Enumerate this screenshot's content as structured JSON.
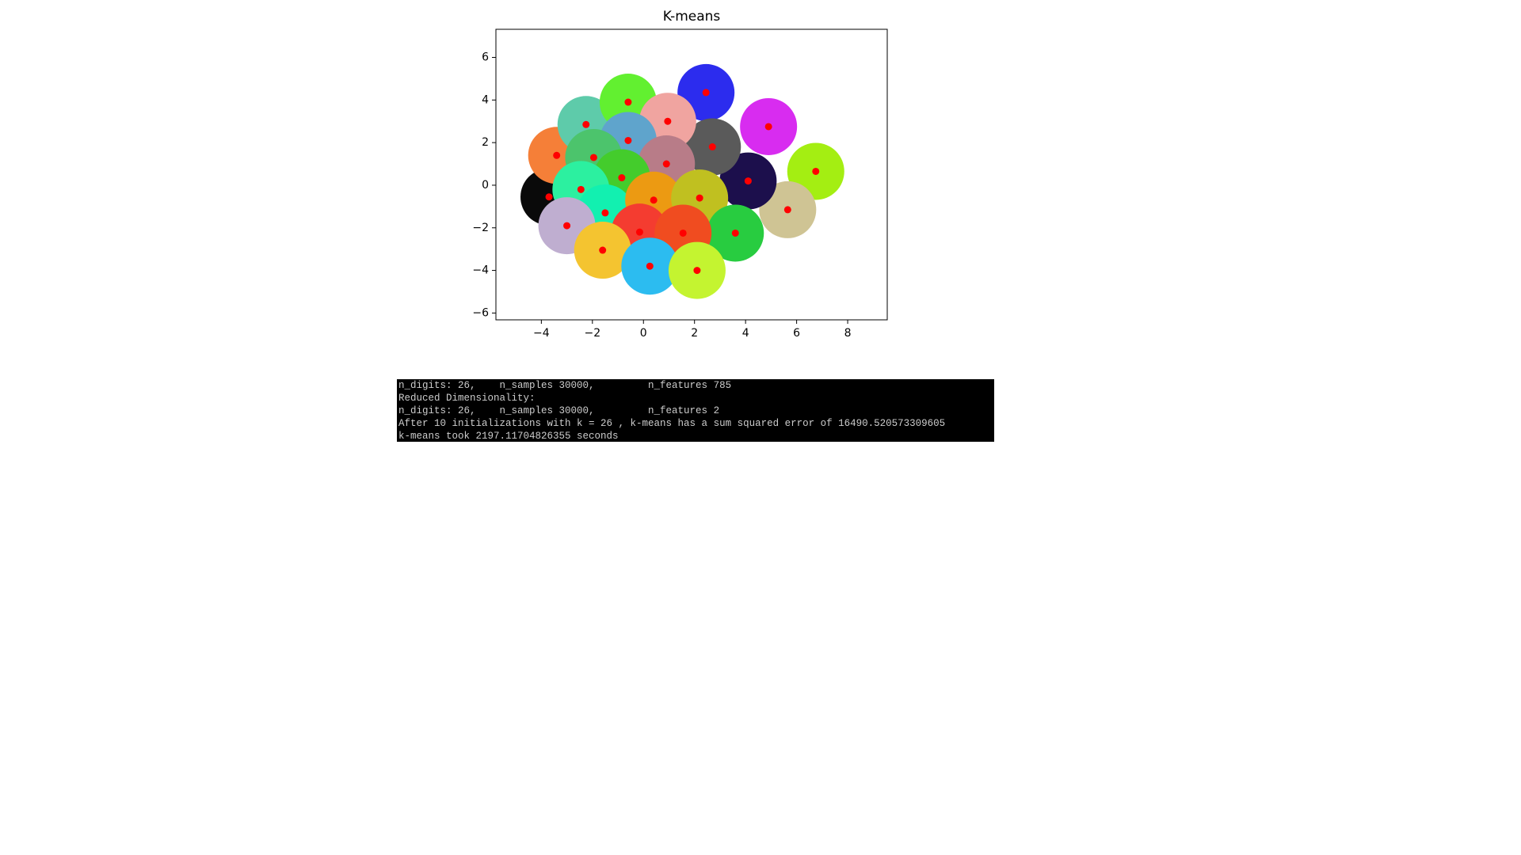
{
  "chart_data": {
    "type": "scatter",
    "title": "K-means",
    "xlim": [
      -5.78,
      9.55
    ],
    "ylim": [
      -6.32,
      7.32
    ],
    "xticks": [
      {
        "value": -4,
        "label": "−4"
      },
      {
        "value": -2,
        "label": "−2"
      },
      0,
      2,
      4,
      6,
      8
    ],
    "yticks": [
      {
        "value": -6,
        "label": "−6"
      },
      {
        "value": -4,
        "label": "−4"
      },
      {
        "value": -2,
        "label": "−2"
      },
      0,
      2,
      4,
      6
    ],
    "centroid_color": "#ff0000",
    "series": [
      {
        "color": "#0a0a0a",
        "x": [
          -3.7
        ],
        "y": [
          -0.55
        ]
      },
      {
        "color": "#f57f38",
        "x": [
          -3.4
        ],
        "y": [
          1.4
        ]
      },
      {
        "color": "#5ecbaa",
        "x": [
          -2.25
        ],
        "y": [
          2.85
        ]
      },
      {
        "color": "#62f030",
        "x": [
          -0.6
        ],
        "y": [
          3.9
        ]
      },
      {
        "color": "#2c2cee",
        "x": [
          2.45
        ],
        "y": [
          4.35
        ]
      },
      {
        "color": "#d82cf0",
        "x": [
          4.9
        ],
        "y": [
          2.75
        ]
      },
      {
        "color": "#a4ee12",
        "x": [
          6.75
        ],
        "y": [
          0.65
        ]
      },
      {
        "color": "#cfc494",
        "x": [
          5.65
        ],
        "y": [
          -1.15
        ]
      },
      {
        "color": "#1c0f4c",
        "x": [
          4.1
        ],
        "y": [
          0.2
        ]
      },
      {
        "color": "#5a5a5a",
        "x": [
          2.7
        ],
        "y": [
          1.8
        ]
      },
      {
        "color": "#f0a4a0",
        "x": [
          0.95
        ],
        "y": [
          3.0
        ]
      },
      {
        "color": "#5fa4cc",
        "x": [
          -0.6
        ],
        "y": [
          2.1
        ]
      },
      {
        "color": "#4cc46c",
        "x": [
          -1.95
        ],
        "y": [
          1.3
        ]
      },
      {
        "color": "#b87c88",
        "x": [
          0.9
        ],
        "y": [
          1.0
        ]
      },
      {
        "color": "#44cc2c",
        "x": [
          -0.85
        ],
        "y": [
          0.35
        ]
      },
      {
        "color": "#2cf0a0",
        "x": [
          -2.45
        ],
        "y": [
          -0.2
        ]
      },
      {
        "color": "#12f0b0",
        "x": [
          -1.5
        ],
        "y": [
          -1.3
        ]
      },
      {
        "color": "#bfaed0",
        "x": [
          -3.0
        ],
        "y": [
          -1.9
        ]
      },
      {
        "color": "#ec9a12",
        "x": [
          0.4
        ],
        "y": [
          -0.7
        ]
      },
      {
        "color": "#c0c020",
        "x": [
          2.2
        ],
        "y": [
          -0.6
        ]
      },
      {
        "color": "#28cc40",
        "x": [
          3.6
        ],
        "y": [
          -2.25
        ]
      },
      {
        "color": "#f43c30",
        "x": [
          -0.15
        ],
        "y": [
          -2.2
        ]
      },
      {
        "color": "#f04c20",
        "x": [
          1.55
        ],
        "y": [
          -2.25
        ]
      },
      {
        "color": "#f4c430",
        "x": [
          -1.6
        ],
        "y": [
          -3.05
        ]
      },
      {
        "color": "#2cbcf0",
        "x": [
          0.25
        ],
        "y": [
          -3.8
        ]
      },
      {
        "color": "#c4f430",
        "x": [
          2.1
        ],
        "y": [
          -4.0
        ]
      }
    ]
  },
  "terminal": {
    "lines": [
      "n_digits: 26,    n_samples 30000,         n_features 785",
      "Reduced Dimensionality:",
      "n_digits: 26,    n_samples 30000,         n_features 2",
      "After 10 initializations with k = 26 , k-means has a sum squared error of 16490.520573309605",
      "k-means took 2197.11704826355 seconds"
    ]
  }
}
